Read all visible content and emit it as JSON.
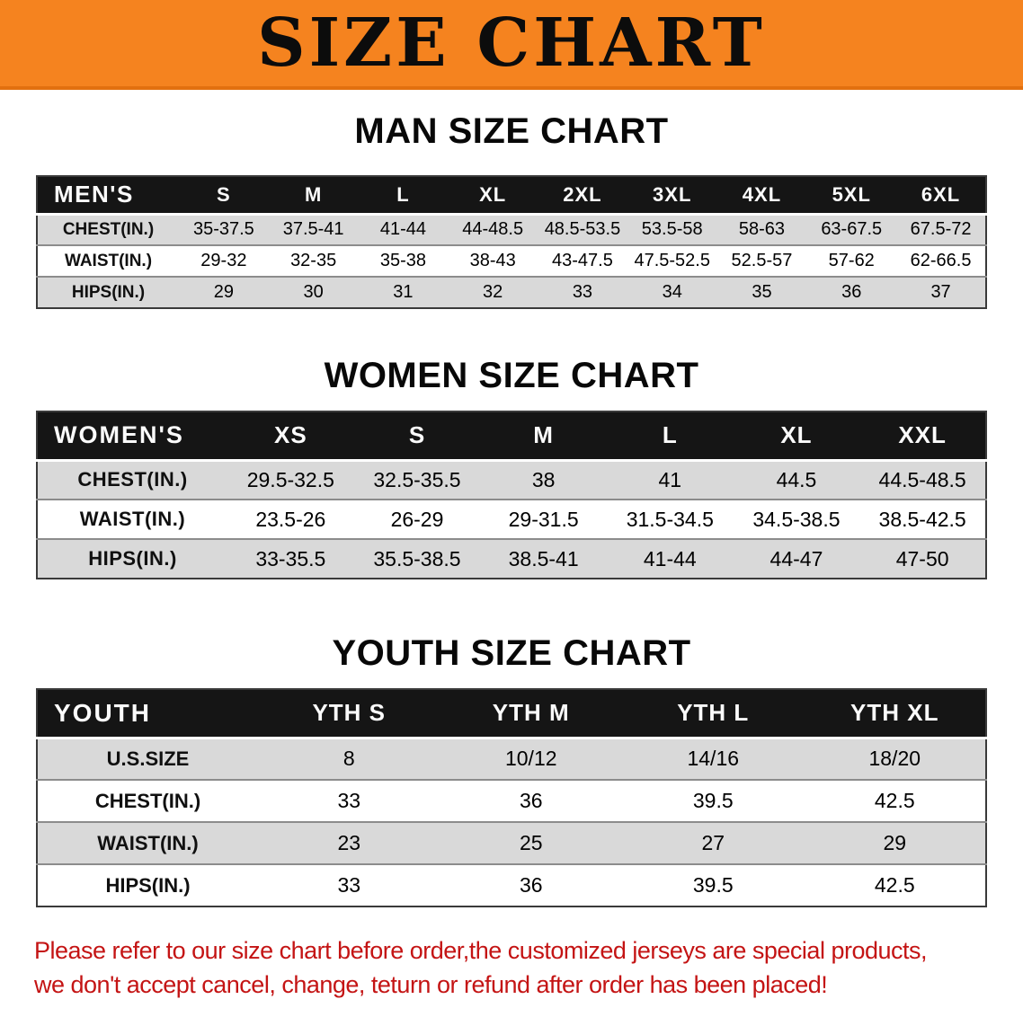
{
  "banner": {
    "title": "SIZE CHART",
    "bg_color": "#f5831f",
    "text_color": "#0c0c0c"
  },
  "sections": [
    {
      "id": "men",
      "heading": "MAN SIZE CHART",
      "table": {
        "header": [
          "MEN'S",
          "S",
          "M",
          "L",
          "XL",
          "2XL",
          "3XL",
          "4XL",
          "5XL",
          "6XL"
        ],
        "rows": [
          {
            "label": "CHEST(IN.)",
            "values": [
              "35-37.5",
              "37.5-41",
              "41-44",
              "44-48.5",
              "48.5-53.5",
              "53.5-58",
              "58-63",
              "63-67.5",
              "67.5-72"
            ]
          },
          {
            "label": "WAIST(IN.)",
            "values": [
              "29-32",
              "32-35",
              "35-38",
              "38-43",
              "43-47.5",
              "47.5-52.5",
              "52.5-57",
              "57-62",
              "62-66.5"
            ]
          },
          {
            "label": "HIPS(IN.)",
            "values": [
              "29",
              "30",
              "31",
              "32",
              "33",
              "34",
              "35",
              "36",
              "37"
            ]
          }
        ]
      }
    },
    {
      "id": "women",
      "heading": "WOMEN SIZE CHART",
      "table": {
        "header": [
          "WOMEN'S",
          "XS",
          "S",
          "M",
          "L",
          "XL",
          "XXL"
        ],
        "rows": [
          {
            "label": "CHEST(IN.)",
            "values": [
              "29.5-32.5",
              "32.5-35.5",
              "38",
              "41",
              "44.5",
              "44.5-48.5"
            ]
          },
          {
            "label": "WAIST(IN.)",
            "values": [
              "23.5-26",
              "26-29",
              "29-31.5",
              "31.5-34.5",
              "34.5-38.5",
              "38.5-42.5"
            ]
          },
          {
            "label": "HIPS(IN.)",
            "values": [
              "33-35.5",
              "35.5-38.5",
              "38.5-41",
              "41-44",
              "44-47",
              "47-50"
            ]
          }
        ]
      }
    },
    {
      "id": "youth",
      "heading": "YOUTH SIZE CHART",
      "table": {
        "header": [
          "YOUTH",
          "YTH S",
          "YTH M",
          "YTH L",
          "YTH XL"
        ],
        "rows": [
          {
            "label": "U.S.SIZE",
            "values": [
              "8",
              "10/12",
              "14/16",
              "18/20"
            ]
          },
          {
            "label": "CHEST(IN.)",
            "values": [
              "33",
              "36",
              "39.5",
              "42.5"
            ]
          },
          {
            "label": "WAIST(IN.)",
            "values": [
              "23",
              "25",
              "27",
              "29"
            ]
          },
          {
            "label": "HIPS(IN.)",
            "values": [
              "33",
              "36",
              "39.5",
              "42.5"
            ]
          }
        ]
      }
    }
  ],
  "footer": {
    "line1": "Please refer to our size chart before order,the customized jerseys are special products,",
    "line2": "we don't accept cancel, change, teturn or refund after order has been placed!",
    "text_color": "#c41414"
  }
}
